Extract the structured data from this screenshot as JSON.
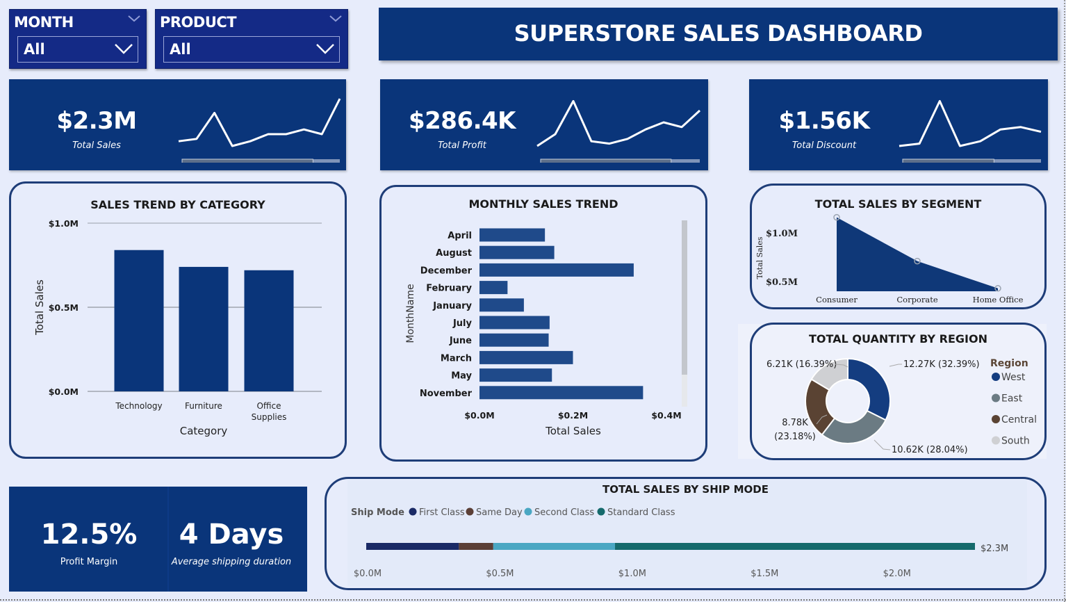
{
  "filters": {
    "month": {
      "label": "MONTH",
      "value": "All"
    },
    "product": {
      "label": "PRODUCT",
      "value": "All"
    }
  },
  "dashboard_title": "SUPERSTORE SALES DASHBOARD",
  "kpis": {
    "total_sales": {
      "value": "$2.3M",
      "caption": "Total Sales",
      "spark": [
        0.1,
        0.15,
        0.7,
        0.0,
        0.1,
        0.25,
        0.25,
        0.35,
        0.25,
        1.0
      ],
      "progress": 0.83
    },
    "total_profit": {
      "value": "$286.4K",
      "caption": "Total Profit",
      "spark": [
        0.0,
        0.25,
        0.95,
        0.1,
        0.05,
        0.15,
        0.35,
        0.5,
        0.4,
        0.75
      ],
      "progress": 0.82
    },
    "total_discount": {
      "value": "$1.56K",
      "caption": "Total Discount",
      "spark": [
        0.0,
        0.05,
        0.95,
        0.0,
        0.1,
        0.35,
        0.4,
        0.3
      ],
      "progress": 0.66
    }
  },
  "category_chart": {
    "title": "SALES TREND BY CATEGORY",
    "xlabel": "Category",
    "ylabel": "Total Sales",
    "ticks": [
      "$1.0M",
      "$0.5M",
      "$0.0M"
    ],
    "categories": [
      "Technology",
      "Furniture",
      "Office Supplies"
    ],
    "category_lines": [
      [
        "Technology"
      ],
      [
        "Furniture"
      ],
      [
        "Office",
        "Supplies"
      ]
    ],
    "values": [
      0.84,
      0.74,
      0.72
    ],
    "ylim": [
      0,
      1.0
    ],
    "color": "#0a357a"
  },
  "monthly_chart": {
    "title": "MONTHLY SALES TREND",
    "xlabel": "Total Sales",
    "ylabel": "MonthName",
    "ticks": [
      "$0.0M",
      "$0.2M",
      "$0.4M"
    ],
    "categories": [
      "April",
      "August",
      "December",
      "February",
      "January",
      "July",
      "June",
      "March",
      "May",
      "November"
    ],
    "values": [
      0.14,
      0.16,
      0.33,
      0.06,
      0.095,
      0.15,
      0.148,
      0.2,
      0.155,
      0.35
    ],
    "xlim": [
      0,
      0.4
    ],
    "color": "#1f4a8a"
  },
  "segment_chart": {
    "title": "TOTAL SALES BY SEGMENT",
    "ylabel": "Total Sales",
    "ticks": [
      "$1.0M",
      "$0.5M"
    ],
    "categories": [
      "Consumer",
      "Corporate",
      "Home Office"
    ],
    "values": [
      1.16,
      0.71,
      0.43
    ],
    "ylim": [
      0.4,
      1.2
    ],
    "color": "#0f3878"
  },
  "region_chart": {
    "title": "TOTAL QUANTITY BY REGION",
    "legend_title": "Region",
    "slices": [
      {
        "name": "West",
        "value": 12.27,
        "label": "12.27K (32.39%)",
        "color": "#143d80"
      },
      {
        "name": "East",
        "value": 10.62,
        "label": "10.62K (28.04%)",
        "color": "#6b7b83"
      },
      {
        "name": "Central",
        "value": 8.78,
        "label": "8.78K (23.18%)",
        "color": "#5a4333"
      },
      {
        "name": "South",
        "value": 6.21,
        "label": "6.21K (16.39%)",
        "color": "#cfd0d3"
      }
    ],
    "central_label_lines": [
      "8.78K",
      "(23.18%)"
    ]
  },
  "shipmode_chart": {
    "title": "TOTAL SALES BY SHIP MODE",
    "legend_title": "Ship Mode",
    "series": [
      {
        "name": "First Class",
        "value": 0.35,
        "color": "#1a2a66"
      },
      {
        "name": "Same Day",
        "value": 0.13,
        "color": "#5b3f36"
      },
      {
        "name": "Second Class",
        "value": 0.46,
        "color": "#4aa7c3"
      },
      {
        "name": "Standard Class",
        "value": 1.36,
        "color": "#156a6c"
      }
    ],
    "total_label": "$2.3M",
    "ticks": [
      "$0.0M",
      "$0.5M",
      "$1.0M",
      "$1.5M",
      "$2.0M"
    ],
    "xlim": [
      0,
      2.3
    ]
  },
  "bottom_kpis": {
    "profit_margin": {
      "value": "12.5%",
      "caption": "Profit Margin"
    },
    "shipping": {
      "value": "4 Days",
      "caption": "Average shipping duration"
    }
  }
}
